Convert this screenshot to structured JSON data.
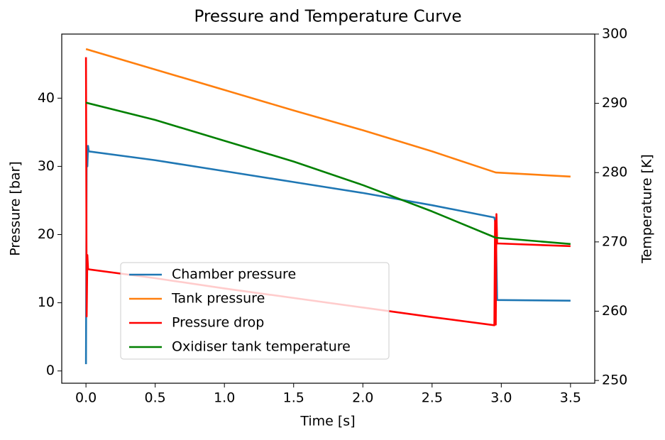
{
  "chart_data": {
    "type": "line",
    "title": "Pressure and Temperature Curve",
    "xlabel": "Time [s]",
    "ylabel": "Pressure [bar]",
    "y2label": "Temperature [K]",
    "xlim": [
      -0.175,
      3.675
    ],
    "ylim": [
      -1.8,
      49.4
    ],
    "y2lim": [
      249.6,
      300
    ],
    "xticks": [
      {
        "value": 0,
        "label": "0.0"
      },
      0.5,
      {
        "value": 1,
        "label": "1.0"
      },
      1.5,
      {
        "value": 2,
        "label": "2.0"
      },
      2.5,
      {
        "value": 3,
        "label": "3.0"
      },
      3.5
    ],
    "yticks": [
      0,
      10,
      20,
      30,
      40
    ],
    "y2ticks": [
      250,
      260,
      270,
      280,
      290,
      300
    ],
    "grid": false,
    "legend": "lower left",
    "series": [
      {
        "name": "Chamber pressure",
        "color": "#1f77b4",
        "x": [
          0,
          0.005,
          0.01,
          0.015,
          0.02,
          0.5,
          1.0,
          1.5,
          2.0,
          2.5,
          2.95,
          2.96,
          2.97,
          3.0,
          3.5
        ],
        "values": [
          1,
          33,
          30,
          33,
          32.2,
          30.9,
          29.3,
          27.7,
          26.1,
          24.3,
          22.5,
          21.5,
          10.4,
          10.4,
          10.3
        ]
      },
      {
        "name": "Tank pressure",
        "color": "#ff7f0e",
        "x": [
          0,
          0.5,
          1.0,
          1.5,
          2.0,
          2.5,
          2.96,
          3.5
        ],
        "values": [
          47.2,
          44.2,
          41.2,
          38.2,
          35.3,
          32.2,
          29.1,
          28.5
        ]
      },
      {
        "name": "Pressure drop",
        "color": "#ff0000",
        "x": [
          0,
          0.005,
          0.01,
          0.015,
          0.02,
          0.5,
          1.0,
          1.5,
          2.0,
          2.5,
          2.95,
          2.955,
          2.96,
          2.965,
          2.97,
          3.5
        ],
        "values": [
          46,
          8,
          17,
          15,
          14.9,
          13.6,
          12.1,
          10.7,
          9.3,
          7.9,
          6.7,
          22,
          6.8,
          23,
          18.7,
          18.3
        ]
      },
      {
        "name": "Oxidiser tank temperature",
        "color": "#008000",
        "axis": "y2",
        "x": [
          0,
          0.5,
          1.0,
          1.5,
          2.0,
          2.5,
          2.96,
          3.5
        ],
        "values": [
          290.1,
          287.6,
          284.6,
          281.6,
          278.2,
          274.4,
          270.6,
          269.7
        ]
      }
    ]
  }
}
